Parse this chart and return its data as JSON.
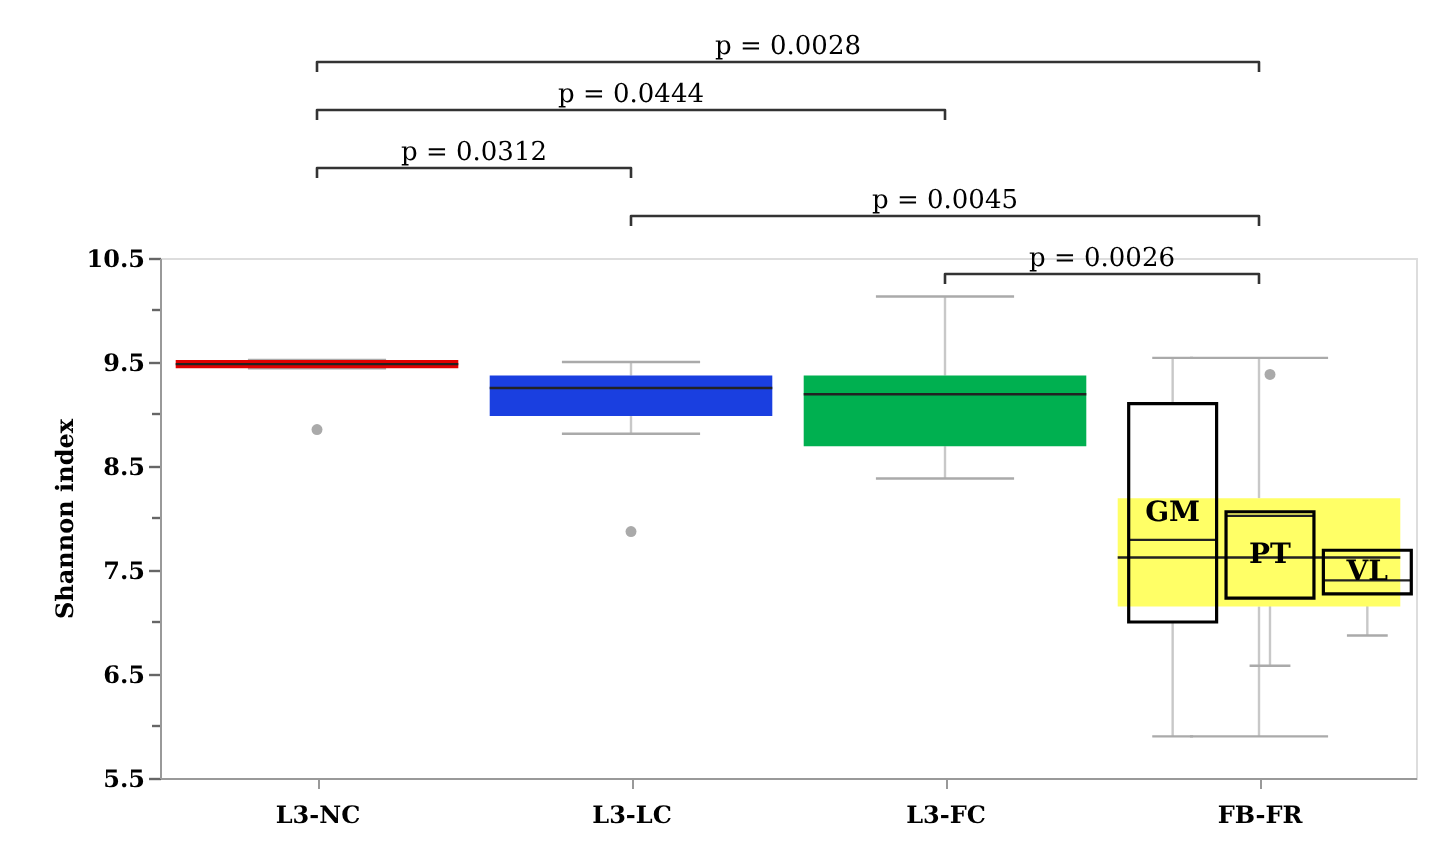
{
  "chart_data": {
    "type": "box",
    "ylabel": "Shannon index",
    "categories": [
      "L3-NC",
      "L3-LC",
      "L3-FC",
      "FB-FR"
    ],
    "ylim": [
      5.5,
      10.5
    ],
    "yticks": [
      5.5,
      {
        "value": 6,
        "label": null
      },
      6.5,
      {
        "value": 7,
        "label": null
      },
      7.5,
      {
        "value": 8,
        "label": null
      },
      8.5,
      {
        "value": 9,
        "label": null
      },
      9.5,
      {
        "value": 10,
        "label": null
      },
      10.5
    ],
    "series": [
      {
        "colors": [
          "#e00000",
          "#1a3fe0",
          "#00b050",
          "#ffff66"
        ],
        "boxes": [
          {
            "low": 9.44,
            "q1": 9.44,
            "median": 9.48,
            "q3": 9.52,
            "high": 9.52,
            "outliers": [
              8.85
            ]
          },
          {
            "low": 8.81,
            "q1": 8.98,
            "median": 9.25,
            "q3": 9.37,
            "high": 9.5,
            "outliers": [
              7.87
            ]
          },
          {
            "low": 8.38,
            "q1": 8.69,
            "median": 9.19,
            "q3": 9.37,
            "high": 10.13
          },
          {
            "low": 5.9,
            "q1": 7.15,
            "median": 7.62,
            "q3": 8.19,
            "high": 9.54
          }
        ]
      },
      {
        "name": "GM",
        "color": "#000000",
        "boxes": [
          null,
          null,
          null,
          {
            "low": 5.9,
            "q1": 7.0,
            "median": 7.79,
            "q3": 9.1,
            "high": 9.54
          }
        ]
      },
      {
        "name": "PT",
        "color": "#000000",
        "boxes": [
          null,
          null,
          null,
          {
            "low": 6.58,
            "q1": 7.23,
            "median": 8.02,
            "q3": 8.06,
            "high": 8.06,
            "outliers": [
              9.38
            ]
          }
        ]
      },
      {
        "name": "VL",
        "color": "#000000",
        "boxes": [
          null,
          null,
          null,
          {
            "low": 6.87,
            "q1": 7.27,
            "median": 7.4,
            "q3": 7.69,
            "high": 8.12
          }
        ]
      }
    ],
    "annotations": [
      "p = 0.0028",
      "p = 0.0444",
      "p = 0.0312",
      "p = 0.0045",
      "p = 0.0026"
    ],
    "grid": false
  }
}
